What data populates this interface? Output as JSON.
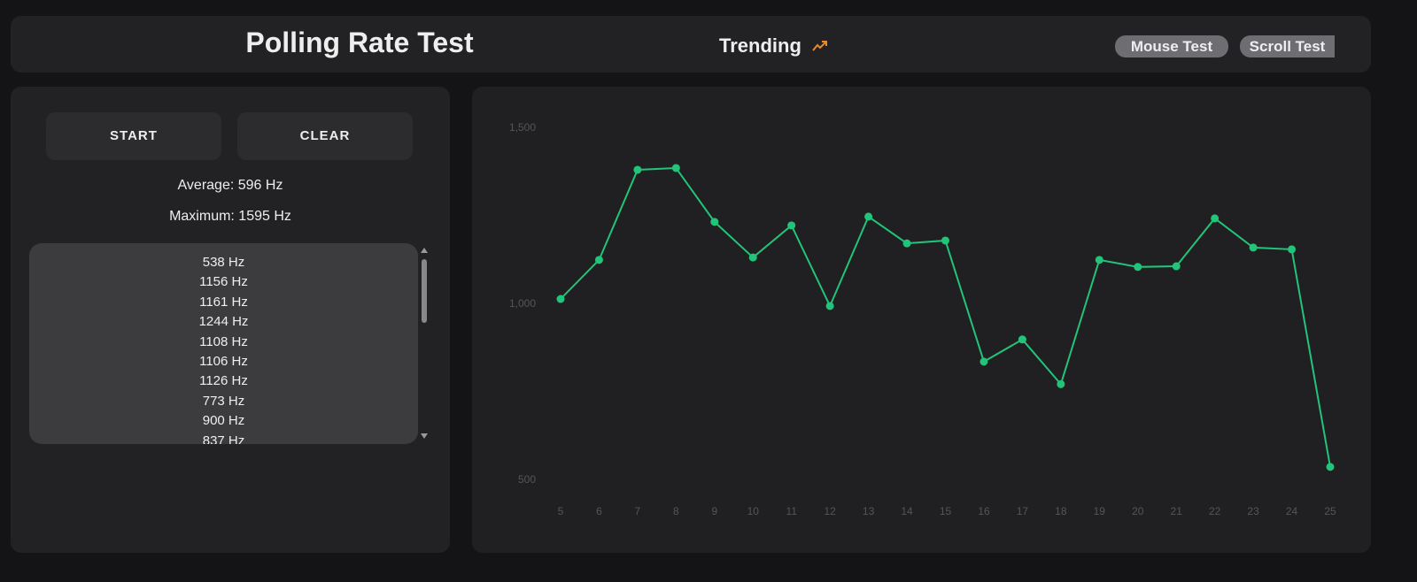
{
  "header": {
    "title": "Polling Rate Test",
    "trending": "Trending",
    "nav": [
      "Mouse Test",
      "Scroll Test"
    ]
  },
  "controls": {
    "buttons": [
      "START",
      "CLEAR"
    ],
    "average": "Average: 596 Hz",
    "maximum": "Maximum: 1595 Hz",
    "readings": [
      "538 Hz",
      "1156 Hz",
      "1161 Hz",
      "1244 Hz",
      "1108 Hz",
      "1106 Hz",
      "1126 Hz",
      "773 Hz",
      "900 Hz",
      "837 Hz"
    ]
  },
  "chart_data": {
    "type": "line",
    "color": "#22c47a",
    "x": [
      5,
      6,
      7,
      8,
      9,
      10,
      11,
      12,
      13,
      14,
      15,
      16,
      17,
      18,
      19,
      20,
      21,
      22,
      23,
      24,
      25
    ],
    "values": [
      1015,
      1126,
      1382,
      1387,
      1234,
      1133,
      1224,
      995,
      1249,
      1173,
      1181,
      837,
      900,
      773,
      1126,
      1106,
      1108,
      1244,
      1161,
      1156,
      538
    ],
    "xlim": [
      5,
      25
    ],
    "xticks": [
      5,
      6,
      7,
      8,
      9,
      10,
      11,
      12,
      13,
      14,
      15,
      16,
      17,
      18,
      19,
      20,
      21,
      22,
      23,
      24,
      25
    ],
    "ylim": [
      500,
      1500
    ],
    "yticks": [
      500,
      {
        "value": 1000,
        "label": "1,000"
      },
      {
        "value": 1500,
        "label": "1,500"
      }
    ]
  }
}
